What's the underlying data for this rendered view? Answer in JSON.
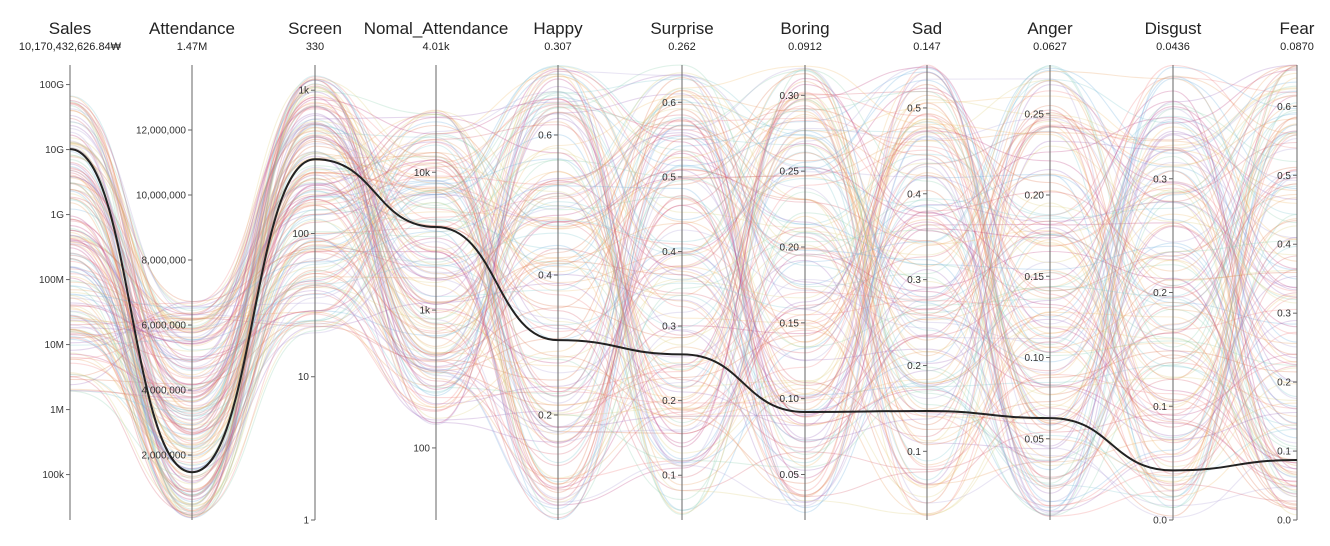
{
  "chart_data": {
    "type": "parallel_coordinates",
    "axes": [
      {
        "name": "Sales",
        "value_label": "10,170,432,626.84₩",
        "value": 10170432626.84,
        "scale": "log",
        "range": [
          20000,
          200000000000
        ],
        "ticks": [
          {
            "v": 100000,
            "label": "100k"
          },
          {
            "v": 1000000,
            "label": "1M"
          },
          {
            "v": 10000000,
            "label": "10M"
          },
          {
            "v": 100000000,
            "label": "100M"
          },
          {
            "v": 1000000000,
            "label": "1G"
          },
          {
            "v": 10000000000,
            "label": "10G"
          },
          {
            "v": 100000000000,
            "label": "100G"
          }
        ]
      },
      {
        "name": "Attendance",
        "value_label": "1.47M",
        "value": 1470000,
        "scale": "linear",
        "range": [
          0,
          14000000
        ],
        "ticks": [
          {
            "v": 2000000,
            "label": "2,000,000"
          },
          {
            "v": 4000000,
            "label": "4,000,000"
          },
          {
            "v": 6000000,
            "label": "6,000,000"
          },
          {
            "v": 8000000,
            "label": "8,000,000"
          },
          {
            "v": 10000000,
            "label": "10,000,000"
          },
          {
            "v": 12000000,
            "label": "12,000,000"
          }
        ]
      },
      {
        "name": "Screen",
        "value_label": "330",
        "value": 330,
        "scale": "log",
        "range": [
          1,
          1500
        ],
        "ticks": [
          {
            "v": 1,
            "label": "1"
          },
          {
            "v": 10,
            "label": "10"
          },
          {
            "v": 100,
            "label": "100"
          },
          {
            "v": 1000,
            "label": "1k"
          }
        ]
      },
      {
        "name": "Nomal_Attendance",
        "value_label": "4.01k",
        "value": 4010,
        "scale": "log",
        "range": [
          30,
          60000
        ],
        "ticks": [
          {
            "v": 100,
            "label": "100"
          },
          {
            "v": 1000,
            "label": "1k"
          },
          {
            "v": 10000,
            "label": "10k"
          }
        ]
      },
      {
        "name": "Happy",
        "value_label": "0.307",
        "value": 0.307,
        "scale": "linear",
        "range": [
          0.05,
          0.7
        ],
        "ticks": [
          {
            "v": 0.2,
            "label": "0.2"
          },
          {
            "v": 0.4,
            "label": "0.4"
          },
          {
            "v": 0.6,
            "label": "0.6"
          }
        ]
      },
      {
        "name": "Surprise",
        "value_label": "0.262",
        "value": 0.262,
        "scale": "linear",
        "range": [
          0.04,
          0.65
        ],
        "ticks": [
          {
            "v": 0.1,
            "label": "0.1"
          },
          {
            "v": 0.2,
            "label": "0.2"
          },
          {
            "v": 0.3,
            "label": "0.3"
          },
          {
            "v": 0.4,
            "label": "0.4"
          },
          {
            "v": 0.5,
            "label": "0.5"
          },
          {
            "v": 0.6,
            "label": "0.6"
          }
        ]
      },
      {
        "name": "Boring",
        "value_label": "0.0912",
        "value": 0.0912,
        "scale": "linear",
        "range": [
          0.02,
          0.32
        ],
        "ticks": [
          {
            "v": 0.05,
            "label": "0.05"
          },
          {
            "v": 0.1,
            "label": "0.10"
          },
          {
            "v": 0.15,
            "label": "0.15"
          },
          {
            "v": 0.2,
            "label": "0.20"
          },
          {
            "v": 0.25,
            "label": "0.25"
          },
          {
            "v": 0.3,
            "label": "0.30"
          }
        ]
      },
      {
        "name": "Sad",
        "value_label": "0.147",
        "value": 0.147,
        "scale": "linear",
        "range": [
          0.02,
          0.55
        ],
        "ticks": [
          {
            "v": 0.1,
            "label": "0.1"
          },
          {
            "v": 0.2,
            "label": "0.2"
          },
          {
            "v": 0.3,
            "label": "0.3"
          },
          {
            "v": 0.4,
            "label": "0.4"
          },
          {
            "v": 0.5,
            "label": "0.5"
          }
        ]
      },
      {
        "name": "Anger",
        "value_label": "0.0627",
        "value": 0.0627,
        "scale": "linear",
        "range": [
          0.0,
          0.28
        ],
        "ticks": [
          {
            "v": 0.05,
            "label": "0.05"
          },
          {
            "v": 0.1,
            "label": "0.10"
          },
          {
            "v": 0.15,
            "label": "0.15"
          },
          {
            "v": 0.2,
            "label": "0.20"
          },
          {
            "v": 0.25,
            "label": "0.25"
          }
        ]
      },
      {
        "name": "Disgust",
        "value_label": "0.0436",
        "value": 0.0436,
        "scale": "linear",
        "range": [
          0.0,
          0.4
        ],
        "ticks": [
          {
            "v": 0.0,
            "label": "0.0"
          },
          {
            "v": 0.1,
            "label": "0.1"
          },
          {
            "v": 0.2,
            "label": "0.2"
          },
          {
            "v": 0.3,
            "label": "0.3"
          }
        ]
      },
      {
        "name": "Fear",
        "value_label": "0.0870",
        "value": 0.087,
        "scale": "linear",
        "range": [
          0.0,
          0.66
        ],
        "ticks": [
          {
            "v": 0.0,
            "label": "0.0"
          },
          {
            "v": 0.1,
            "label": "0.1"
          },
          {
            "v": 0.2,
            "label": "0.2"
          },
          {
            "v": 0.3,
            "label": "0.3"
          },
          {
            "v": 0.4,
            "label": "0.4"
          },
          {
            "v": 0.5,
            "label": "0.5"
          },
          {
            "v": 0.6,
            "label": "0.6"
          }
        ]
      }
    ],
    "highlighted_record": [
      10170432626.84,
      1470000,
      330,
      4010,
      0.307,
      0.262,
      0.0912,
      0.147,
      0.0627,
      0.0436,
      0.087
    ],
    "background_line_colors": [
      "#e8a060",
      "#f0c070",
      "#d86070",
      "#c04080",
      "#70b0e0",
      "#90d0b0",
      "#b0a0d8",
      "#e0d080",
      "#f08080",
      "#80c8d0",
      "#a070c0",
      "#e07850"
    ],
    "highlight_color": "#222222"
  }
}
